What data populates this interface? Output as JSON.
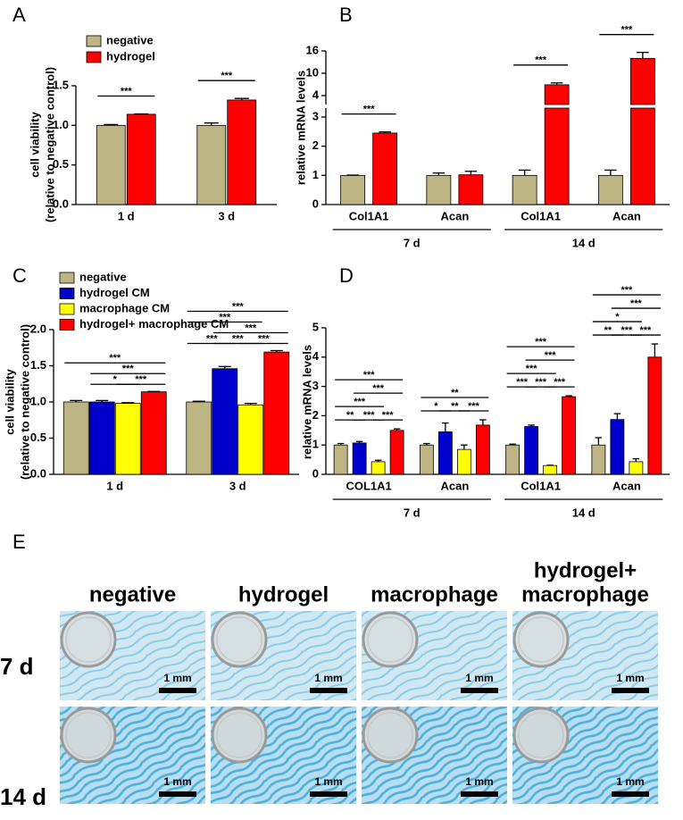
{
  "chart_data": [
    {
      "type": "bar",
      "label": "A",
      "ylabel": [
        "cell viability",
        "(relative to negative control)"
      ],
      "categories": [
        "1 d",
        "3 d"
      ],
      "series": [
        {
          "name": "negative",
          "color": "#beb585",
          "values": [
            1.0,
            1.0
          ],
          "errors": [
            0.01,
            0.03
          ]
        },
        {
          "name": "hydrogel",
          "color": "#ff0000",
          "values": [
            1.14,
            1.32
          ],
          "errors": [
            0.005,
            0.02
          ]
        }
      ],
      "ylim": [
        0,
        1.5
      ],
      "yticks": [
        {
          "value": 0,
          "label": "0.0"
        },
        0.5,
        {
          "value": 1,
          "label": "1.0"
        },
        1.5
      ],
      "annotations": [
        {
          "text": "***",
          "category": 0,
          "from": 0,
          "to": 1
        },
        {
          "text": "***",
          "category": 1,
          "from": 0,
          "to": 1
        }
      ]
    },
    {
      "type": "bar",
      "label": "B",
      "ylabel": "relative mRNA levels",
      "categories": [
        "Col1A1",
        "Acan",
        "Col1A1",
        "Acan"
      ],
      "category_groups": [
        "7 d",
        "14 d"
      ],
      "series": [
        {
          "color": "#beb585",
          "values": [
            1,
            1,
            1,
            1
          ],
          "errors": [
            0.01,
            0.08,
            0.18,
            0.18
          ]
        },
        {
          "color": "#ff0000",
          "values": [
            2.45,
            1.02,
            6.9,
            14
          ],
          "errors": [
            0.04,
            0.12,
            0.5,
            1.6
          ]
        }
      ],
      "ylim": [
        0,
        16
      ],
      "ybreak": [
        3,
        4
      ],
      "yticks": [
        0,
        1,
        2,
        3,
        4,
        10,
        16
      ],
      "annotations": [
        {
          "text": "***",
          "category": 0,
          "from": 0,
          "to": 1
        },
        {
          "text": "***",
          "category": 2,
          "from": 0,
          "to": 1
        },
        {
          "text": "***",
          "category": 3,
          "from": 0,
          "to": 1
        }
      ]
    },
    {
      "type": "bar",
      "label": "C",
      "ylabel": [
        "cell viability",
        "(relative to negative control)"
      ],
      "categories": [
        "1 d",
        "3 d"
      ],
      "series": [
        {
          "name": "negative",
          "color": "#beb585",
          "values": [
            1.0,
            1.0
          ],
          "errors": [
            0.02,
            0.01
          ]
        },
        {
          "name": "hydrogel CM",
          "color": "#0000cc",
          "values": [
            1.0,
            1.46
          ],
          "errors": [
            0.02,
            0.03
          ]
        },
        {
          "name": "macrophage CM",
          "color": "#ffff00",
          "values": [
            0.98,
            0.96
          ],
          "errors": [
            0.01,
            0.02
          ]
        },
        {
          "name": "hydrogel+ macrophage CM",
          "color": "#ff0000",
          "values": [
            1.14,
            1.69
          ],
          "errors": [
            0.005,
            0.02
          ]
        }
      ],
      "ylim": [
        0,
        2
      ],
      "yticks": [
        {
          "value": 0,
          "label": "0.0"
        },
        0.5,
        {
          "value": 1,
          "label": "1.0"
        },
        1.5,
        {
          "value": 2,
          "label": "2.0"
        }
      ],
      "annotations": [
        {
          "text": "*",
          "category": 0,
          "from": 1,
          "to": 2
        },
        {
          "text": "***",
          "category": 0,
          "from": 2,
          "to": 3
        },
        {
          "text": "***",
          "category": 0,
          "from": 1,
          "to": 3
        },
        {
          "text": "***",
          "category": 0,
          "from": 0,
          "to": 3
        },
        {
          "text": "***",
          "category": 1,
          "from": 0,
          "to": 1
        },
        {
          "text": "***",
          "category": 1,
          "from": 1,
          "to": 2
        },
        {
          "text": "***",
          "category": 1,
          "from": 2,
          "to": 3
        },
        {
          "text": "***",
          "category": 1,
          "from": 1,
          "to": 3
        },
        {
          "text": "***",
          "category": 1,
          "from": 0,
          "to": 2
        },
        {
          "text": "***",
          "category": 1,
          "from": 0,
          "to": 3
        }
      ]
    },
    {
      "type": "bar",
      "label": "D",
      "ylabel": "relative mRNA levels",
      "categories": [
        "COL1A1",
        "Acan",
        "Col1A1",
        "Acan"
      ],
      "category_groups": [
        "7 d",
        "14 d"
      ],
      "series": [
        {
          "color": "#beb585",
          "values": [
            1.0,
            1.0,
            1.0,
            1.0
          ],
          "errors": [
            0.05,
            0.05,
            0.03,
            0.25
          ]
        },
        {
          "color": "#0000cc",
          "values": [
            1.07,
            1.45,
            1.63,
            1.87
          ],
          "errors": [
            0.05,
            0.3,
            0.05,
            0.2
          ]
        },
        {
          "color": "#ffff00",
          "values": [
            0.43,
            0.85,
            0.3,
            0.43
          ],
          "errors": [
            0.05,
            0.15,
            0.01,
            0.1
          ]
        },
        {
          "color": "#ff0000",
          "values": [
            1.5,
            1.68,
            2.65,
            4.0
          ],
          "errors": [
            0.05,
            0.18,
            0.03,
            0.45
          ]
        }
      ],
      "ylim": [
        0,
        5
      ],
      "yticks": [
        0,
        1,
        2,
        3,
        4,
        5
      ],
      "annotations": [
        {
          "text": "**",
          "category": 0,
          "from": 0,
          "to": 1
        },
        {
          "text": "***",
          "category": 0,
          "from": 1,
          "to": 2
        },
        {
          "text": "***",
          "category": 0,
          "from": 2,
          "to": 3
        },
        {
          "text": "***",
          "category": 0,
          "from": 0,
          "to": 2
        },
        {
          "text": "***",
          "category": 0,
          "from": 1,
          "to": 3
        },
        {
          "text": "***",
          "category": 0,
          "from": 0,
          "to": 3
        },
        {
          "text": "*",
          "category": 1,
          "from": 0,
          "to": 1
        },
        {
          "text": "**",
          "category": 1,
          "from": 1,
          "to": 2
        },
        {
          "text": "***",
          "category": 1,
          "from": 2,
          "to": 3
        },
        {
          "text": "**",
          "category": 1,
          "from": 0,
          "to": 3
        },
        {
          "text": "***",
          "category": 2,
          "from": 0,
          "to": 1
        },
        {
          "text": "***",
          "category": 2,
          "from": 1,
          "to": 2
        },
        {
          "text": "***",
          "category": 2,
          "from": 2,
          "to": 3
        },
        {
          "text": "***",
          "category": 2,
          "from": 0,
          "to": 2
        },
        {
          "text": "***",
          "category": 2,
          "from": 1,
          "to": 3
        },
        {
          "text": "***",
          "category": 2,
          "from": 0,
          "to": 3
        },
        {
          "text": "**",
          "category": 3,
          "from": 0,
          "to": 1
        },
        {
          "text": "***",
          "category": 3,
          "from": 1,
          "to": 2
        },
        {
          "text": "***",
          "category": 3,
          "from": 2,
          "to": 3
        },
        {
          "text": "*",
          "category": 3,
          "from": 0,
          "to": 2
        },
        {
          "text": "***",
          "category": 3,
          "from": 1,
          "to": 3
        },
        {
          "text": "***",
          "category": 3,
          "from": 0,
          "to": 3
        }
      ]
    }
  ],
  "panel_e": {
    "label": "E",
    "columns": [
      [
        "negative"
      ],
      [
        "hydrogel"
      ],
      [
        "macrophage"
      ],
      [
        "hydrogel+",
        "macrophage"
      ]
    ],
    "rows": [
      "7 d",
      "14 d"
    ],
    "scale_bar": "1 mm"
  }
}
